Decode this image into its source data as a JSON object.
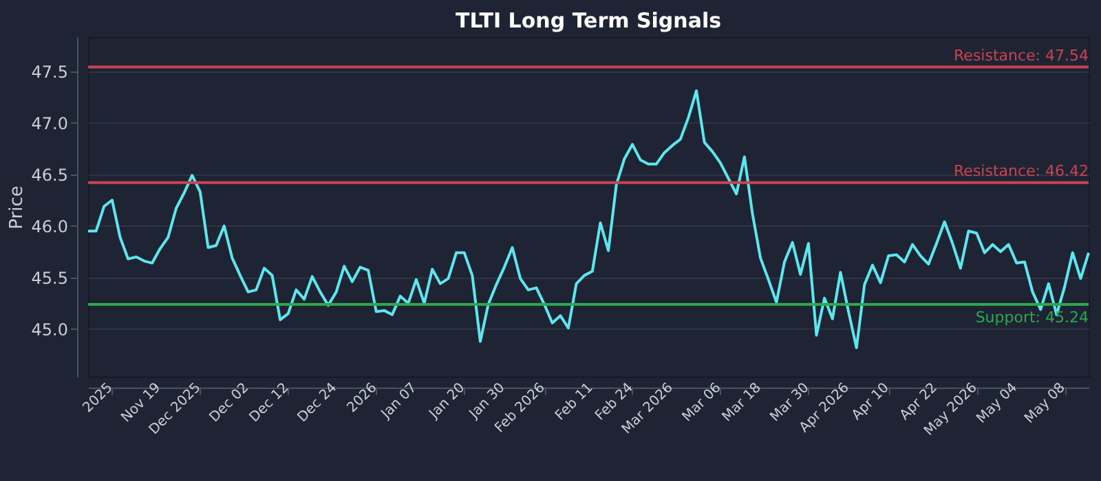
{
  "chart_data": {
    "type": "line",
    "title": "TLTI Long Term Signals",
    "ylabel": "Price",
    "categories": [
      null,
      null,
      null,
      "2025",
      null,
      null,
      null,
      null,
      null,
      "Nov 19",
      null,
      null,
      null,
      null,
      "Dec 2025",
      null,
      null,
      null,
      null,
      null,
      "Dec 02",
      null,
      null,
      null,
      null,
      "Dec 12",
      null,
      null,
      null,
      null,
      null,
      "Dec 24",
      null,
      null,
      null,
      null,
      "2026",
      null,
      null,
      null,
      null,
      "Jan 07",
      null,
      null,
      null,
      null,
      null,
      "Jan 20",
      null,
      null,
      null,
      null,
      "Jan 30",
      null,
      null,
      null,
      null,
      "Feb 2026",
      null,
      null,
      null,
      null,
      null,
      "Feb 11",
      null,
      null,
      null,
      null,
      "Feb 24",
      null,
      null,
      null,
      null,
      "Mar 2026",
      null,
      null,
      null,
      null,
      null,
      "Mar 06",
      null,
      null,
      null,
      null,
      "Mar 18",
      null,
      null,
      null,
      null,
      null,
      "Mar 30",
      null,
      null,
      null,
      null,
      "Apr 2026",
      null,
      null,
      null,
      null,
      "Apr 10",
      null,
      null,
      null,
      null,
      null,
      "Apr 22",
      null,
      null,
      null,
      null,
      "May 2026",
      null,
      null,
      null,
      null,
      "May 04",
      null,
      null,
      null,
      null,
      null,
      "May 08",
      null,
      null,
      null
    ],
    "series": [
      {
        "color": "#5ee6ee",
        "values": [
          45.95,
          45.95,
          46.19,
          46.25,
          45.89,
          45.68,
          45.7,
          45.66,
          45.64,
          45.78,
          45.89,
          46.17,
          46.32,
          46.49,
          46.33,
          45.79,
          45.81,
          46.0,
          45.69,
          45.52,
          45.36,
          45.38,
          45.59,
          45.52,
          45.09,
          45.15,
          45.38,
          45.29,
          45.51,
          45.36,
          45.23,
          45.36,
          45.61,
          45.46,
          45.6,
          45.57,
          45.17,
          45.18,
          45.14,
          45.32,
          45.25,
          45.48,
          45.25,
          45.58,
          45.44,
          45.49,
          45.74,
          45.74,
          45.52,
          44.88,
          45.24,
          45.43,
          45.6,
          45.79,
          45.49,
          45.38,
          45.4,
          45.24,
          45.06,
          45.13,
          45.01,
          45.44,
          45.52,
          45.56,
          46.03,
          45.76,
          46.4,
          46.65,
          46.79,
          46.64,
          46.6,
          46.6,
          46.71,
          46.78,
          46.84,
          47.05,
          47.31,
          46.81,
          46.72,
          46.61,
          46.46,
          46.31,
          46.67,
          46.12,
          45.69,
          45.48,
          45.26,
          45.65,
          45.84,
          45.53,
          45.83,
          44.94,
          45.3,
          45.1,
          45.55,
          45.17,
          44.82,
          45.43,
          45.62,
          45.45,
          45.71,
          45.72,
          45.65,
          45.82,
          45.71,
          45.63,
          45.83,
          46.04,
          45.83,
          45.59,
          45.95,
          45.93,
          45.74,
          45.82,
          45.75,
          45.82,
          45.64,
          45.65,
          45.36,
          45.19,
          45.44,
          45.14,
          45.41,
          45.74,
          45.49,
          45.74
        ]
      }
    ],
    "ylim": [
      44.54,
      47.83
    ],
    "yticks": [
      {
        "value": 45,
        "label": "45.0"
      },
      45.5,
      {
        "value": 46,
        "label": "46.0"
      },
      46.5,
      {
        "value": 47,
        "label": "47.0"
      },
      47.5
    ],
    "grid": "y",
    "ref_lines": [
      {
        "axis": "y",
        "value": 47.54,
        "label": "Resistance: 47.54",
        "color": "#c9444f"
      },
      {
        "axis": "y",
        "value": 46.42,
        "label": "Resistance: 46.42",
        "color": "#c9444f"
      },
      {
        "axis": "y",
        "value": 45.24,
        "label": "Support: 45.24",
        "color": "#2ea84f"
      }
    ]
  }
}
